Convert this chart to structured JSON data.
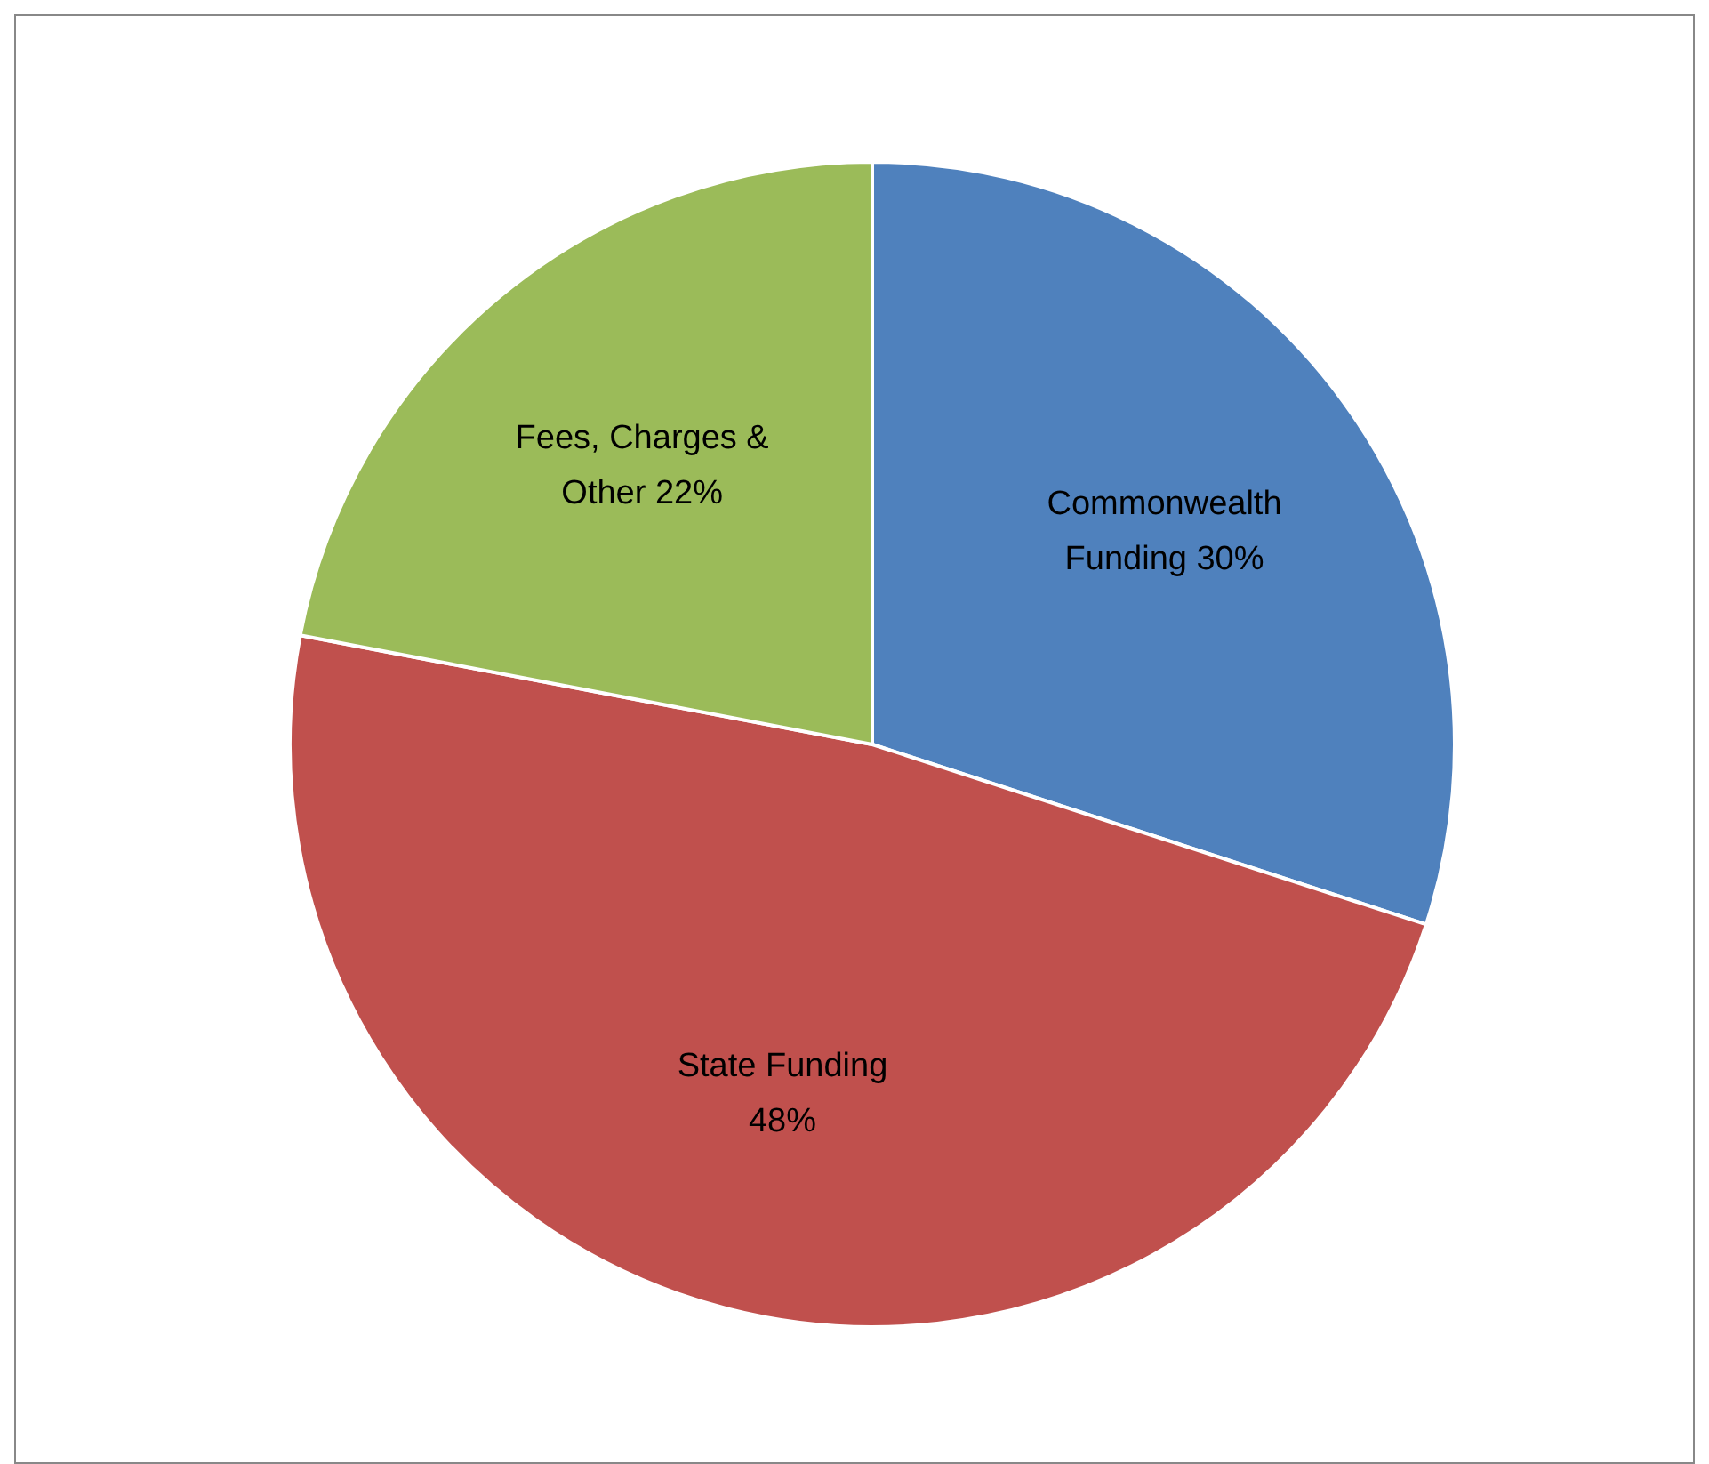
{
  "chart_data": {
    "type": "pie",
    "categories": [
      "Commonwealth Funding",
      "State Funding",
      "Fees, Charges & Other"
    ],
    "values": [
      30,
      48,
      22
    ],
    "colors": [
      "#4f81bd",
      "#c0504d",
      "#9bbb59"
    ],
    "value_labels": [
      "30%",
      "48%",
      "22%"
    ],
    "legend": false
  }
}
